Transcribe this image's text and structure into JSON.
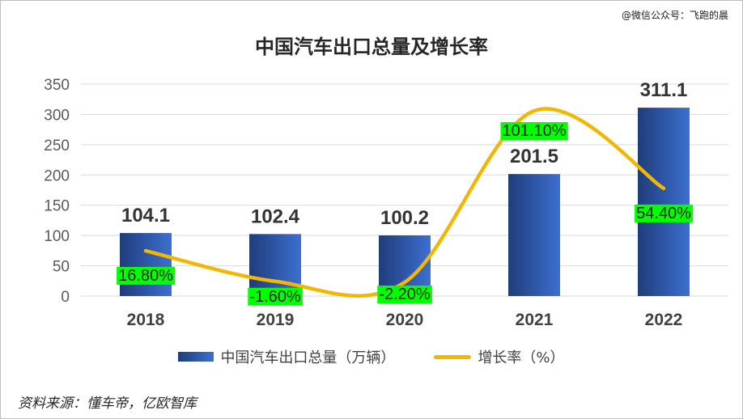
{
  "watermark": "@微信公众号：飞跑的晨",
  "source": "资料来源：懂车帝，亿欧智库",
  "colors": {
    "bar_dark": "#1f3d7a",
    "bar_light": "#3d6fd0",
    "line": "#f2b705",
    "highlight": "#00ff00"
  },
  "chart_data": {
    "type": "bar",
    "title": "中国汽车出口总量及增长率",
    "categories": [
      "2018",
      "2019",
      "2020",
      "2021",
      "2022"
    ],
    "series": [
      {
        "name": "中国汽车出口总量（万辆）",
        "kind": "bar",
        "values": [
          104.1,
          102.4,
          100.2,
          201.5,
          311.1
        ],
        "labels": [
          "104.1",
          "102.4",
          "100.2",
          "201.5",
          "311.1"
        ]
      },
      {
        "name": "增长率（%）",
        "kind": "line",
        "values": [
          16.8,
          -1.6,
          -2.2,
          101.1,
          54.4
        ],
        "labels": [
          "16.80%",
          "-1.60%",
          "-2.20%",
          "101.10%",
          "54.40%"
        ]
      }
    ],
    "ylim": [
      0,
      350
    ],
    "yticks": [
      "0",
      "50",
      "100",
      "150",
      "200",
      "250",
      "300",
      "350"
    ],
    "grid": true,
    "legend": "bottom"
  }
}
